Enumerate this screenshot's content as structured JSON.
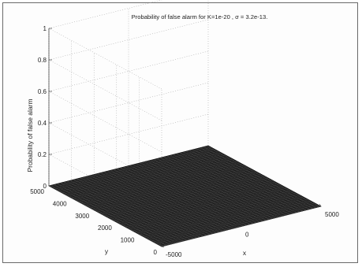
{
  "chart_data": {
    "type": "surface",
    "title": "Probability of false alarm for K=1e-20 , σ = 3.2e-13.",
    "xlabel": "x",
    "ylabel": "y",
    "zlabel": "Probability of false alarm",
    "xlim": [
      -5000,
      5000
    ],
    "ylim": [
      0,
      5000
    ],
    "zlim": [
      0,
      1
    ],
    "x_ticks": [
      "-5000",
      "0",
      "5000"
    ],
    "y_ticks": [
      "0",
      "1000",
      "2000",
      "3000",
      "4000",
      "5000"
    ],
    "z_ticks": [
      "0",
      "0.2",
      "0.4",
      "0.6",
      "0.8",
      "1"
    ],
    "surface_value": 0,
    "grid": true,
    "colors": {
      "surface": "#3a3a3a",
      "mesh": "#0d0d0d",
      "axes": "#333333",
      "grid": "#9a9a9a"
    }
  }
}
